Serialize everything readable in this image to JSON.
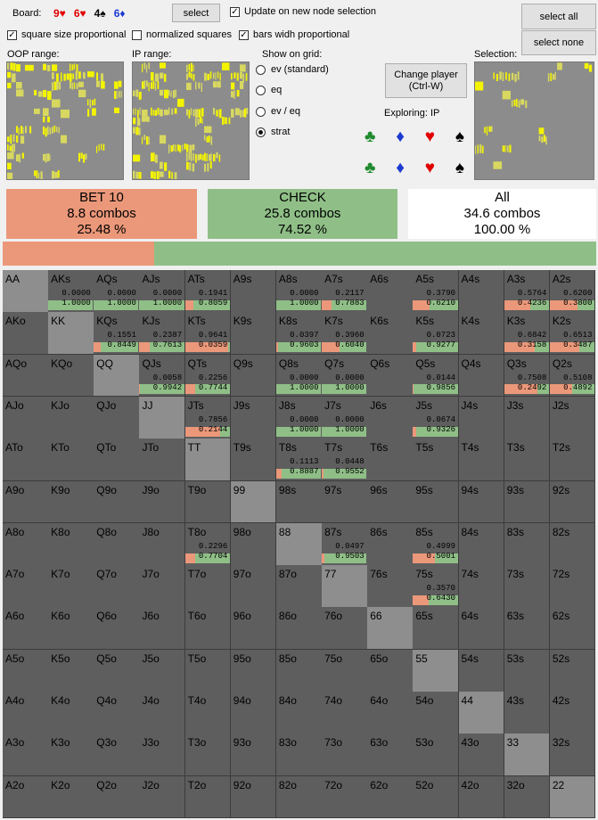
{
  "board": {
    "label": "Board:",
    "cards": [
      {
        "text": "9♥",
        "color": "#e00000"
      },
      {
        "text": "6♥",
        "color": "#e00000"
      },
      {
        "text": "4♠",
        "color": "#000000"
      },
      {
        "text": "6♦",
        "color": "#1a3ad0"
      }
    ],
    "select_label": "select"
  },
  "options": {
    "update_on_node": "Update on new node selection",
    "square_size": "square size proportional",
    "normalized": "normalized squares",
    "bars_width": "bars widh proportional"
  },
  "buttons": {
    "select_all": "select all",
    "select_none": "select none",
    "change_player": "Change player\n(Ctrl-W)"
  },
  "ranges": {
    "oop_label": "OOP range:",
    "ip_label": "IP range:",
    "selection_label": "Selection:"
  },
  "show_on_grid": {
    "label": "Show on grid:",
    "options": [
      "ev (standard)",
      "eq",
      "ev / eq",
      "strat"
    ],
    "selected": "strat"
  },
  "exploring": "Exploring: IP",
  "suit_buttons": [
    {
      "glyph": "♣",
      "color": "#1e8a2e",
      "icon": "club-icon"
    },
    {
      "glyph": "♦",
      "color": "#1a3ad0",
      "icon": "diamond-icon"
    },
    {
      "glyph": "♥",
      "color": "#e00000",
      "icon": "heart-icon"
    },
    {
      "glyph": "♠",
      "color": "#000000",
      "icon": "spade-icon"
    }
  ],
  "summary": [
    {
      "title": "BET 10",
      "combos": "8.8 combos",
      "pct": "25.48 %",
      "color": "#eb987a"
    },
    {
      "title": "CHECK",
      "combos": "25.8 combos",
      "pct": "74.52 %",
      "color": "#8fbf87"
    },
    {
      "title": "All",
      "combos": "34.6 combos",
      "pct": "100.00 %",
      "color": "#ffffff"
    }
  ],
  "strategy_bar": {
    "bet_fraction": 0.2548,
    "bet_color": "#eb987a",
    "check_color": "#8fbf87"
  },
  "colors": {
    "bet": "#eb987a",
    "check": "#8fbf87",
    "cell": "#5e5e5e",
    "pair": "#8e8e8e",
    "mini_yellow": "#f4f400"
  },
  "grid": {
    "hands": [
      [
        "AA",
        "AKs",
        "AQs",
        "AJs",
        "ATs",
        "A9s",
        "A8s",
        "A7s",
        "A6s",
        "A5s",
        "A4s",
        "A3s",
        "A2s"
      ],
      [
        "AKo",
        "KK",
        "KQs",
        "KJs",
        "KTs",
        "K9s",
        "K8s",
        "K7s",
        "K6s",
        "K5s",
        "K4s",
        "K3s",
        "K2s"
      ],
      [
        "AQo",
        "KQo",
        "QQ",
        "QJs",
        "QTs",
        "Q9s",
        "Q8s",
        "Q7s",
        "Q6s",
        "Q5s",
        "Q4s",
        "Q3s",
        "Q2s"
      ],
      [
        "AJo",
        "KJo",
        "QJo",
        "JJ",
        "JTs",
        "J9s",
        "J8s",
        "J7s",
        "J6s",
        "J5s",
        "J4s",
        "J3s",
        "J2s"
      ],
      [
        "ATo",
        "KTo",
        "QTo",
        "JTo",
        "TT",
        "T9s",
        "T8s",
        "T7s",
        "T6s",
        "T5s",
        "T4s",
        "T3s",
        "T2s"
      ],
      [
        "A9o",
        "K9o",
        "Q9o",
        "J9o",
        "T9o",
        "99",
        "98s",
        "97s",
        "96s",
        "95s",
        "94s",
        "93s",
        "92s"
      ],
      [
        "A8o",
        "K8o",
        "Q8o",
        "J8o",
        "T8o",
        "98o",
        "88",
        "87s",
        "86s",
        "85s",
        "84s",
        "83s",
        "82s"
      ],
      [
        "A7o",
        "K7o",
        "Q7o",
        "J7o",
        "T7o",
        "97o",
        "87o",
        "77",
        "76s",
        "75s",
        "74s",
        "73s",
        "72s"
      ],
      [
        "A6o",
        "K6o",
        "Q6o",
        "J6o",
        "T6o",
        "96o",
        "86o",
        "76o",
        "66",
        "65s",
        "64s",
        "63s",
        "62s"
      ],
      [
        "A5o",
        "K5o",
        "Q5o",
        "J5o",
        "T5o",
        "95o",
        "85o",
        "75o",
        "65o",
        "55",
        "54s",
        "53s",
        "52s"
      ],
      [
        "A4o",
        "K4o",
        "Q4o",
        "J4o",
        "T4o",
        "94o",
        "84o",
        "74o",
        "64o",
        "54o",
        "44",
        "43s",
        "42s"
      ],
      [
        "A3o",
        "K3o",
        "Q3o",
        "J3o",
        "T3o",
        "93o",
        "83o",
        "73o",
        "63o",
        "53o",
        "43o",
        "33",
        "32s"
      ],
      [
        "A2o",
        "K2o",
        "Q2o",
        "J2o",
        "T2o",
        "92o",
        "82o",
        "72o",
        "62o",
        "52o",
        "42o",
        "32o",
        "22"
      ]
    ],
    "strategies": {
      "AKs": [
        "0.0000",
        "1.0000"
      ],
      "AQs": [
        "0.0000",
        "1.0000"
      ],
      "AJs": [
        "0.0000",
        "1.0000"
      ],
      "ATs": [
        "0.1941",
        "0.8059"
      ],
      "A8s": [
        "0.0000",
        "1.0000"
      ],
      "A7s": [
        "0.2117",
        "0.7883"
      ],
      "A5s": [
        "0.3790",
        "0.6210"
      ],
      "A3s": [
        "0.5764",
        "0.4236"
      ],
      "A2s": [
        "0.6200",
        "0.3800"
      ],
      "KQs": [
        "0.1551",
        "0.8449"
      ],
      "KJs": [
        "0.2387",
        "0.7613"
      ],
      "KTs": [
        "0.9641",
        "0.0359"
      ],
      "K8s": [
        "0.0397",
        "0.9603"
      ],
      "K7s": [
        "0.3960",
        "0.6040"
      ],
      "K5s": [
        "0.0723",
        "0.9277"
      ],
      "K3s": [
        "0.6842",
        "0.3158"
      ],
      "K2s": [
        "0.6513",
        "0.3487"
      ],
      "QJs": [
        "0.0058",
        "0.9942"
      ],
      "QTs": [
        "0.2256",
        "0.7744"
      ],
      "Q8s": [
        "0.0000",
        "1.0000"
      ],
      "Q7s": [
        "0.0000",
        "1.0000"
      ],
      "Q5s": [
        "0.0144",
        "0.9856"
      ],
      "Q3s": [
        "0.7508",
        "0.2492"
      ],
      "Q2s": [
        "0.5108",
        "0.4892"
      ],
      "JTs": [
        "0.7856",
        "0.2144"
      ],
      "J8s": [
        "0.0000",
        "1.0000"
      ],
      "J7s": [
        "0.0000",
        "1.0000"
      ],
      "J5s": [
        "0.0674",
        "0.9326"
      ],
      "T8s": [
        "0.1113",
        "0.8887"
      ],
      "T7s": [
        "0.0448",
        "0.9552"
      ],
      "T8o": [
        "0.2296",
        "0.7704"
      ],
      "87s": [
        "0.0497",
        "0.9503"
      ],
      "85s": [
        "0.4999",
        "0.5001"
      ],
      "75s": [
        "0.3570",
        "0.6430"
      ]
    }
  }
}
